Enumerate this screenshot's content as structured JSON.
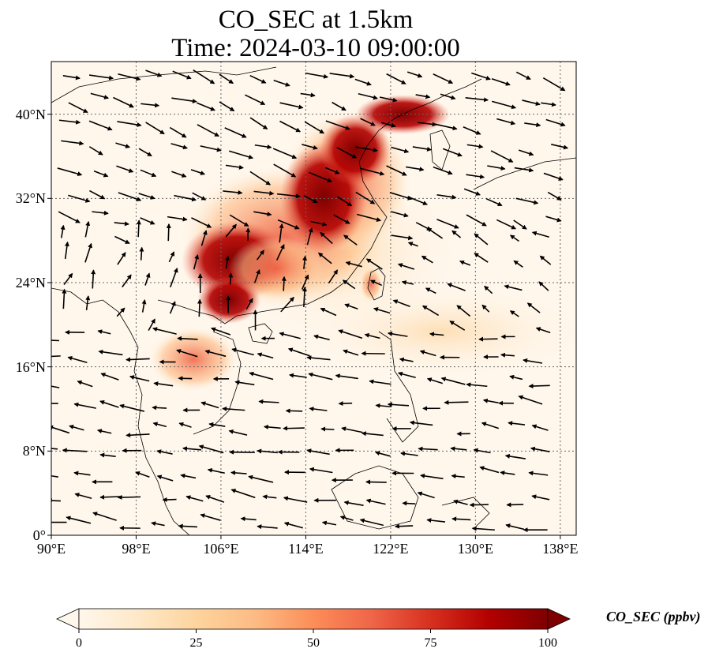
{
  "title": {
    "line1": "CO_SEC at 1.5km",
    "line2": "Time: 2024-03-10 09:00:00"
  },
  "map": {
    "lon_range": [
      90,
      139.5
    ],
    "lat_range": [
      0,
      45
    ],
    "gridlines": "dotted",
    "coastlines": true,
    "wind_vectors": true,
    "x_ticks": [
      "90°E",
      "98°E",
      "106°E",
      "114°E",
      "122°E",
      "130°E",
      "138°E"
    ],
    "x_tick_values": [
      90,
      98,
      106,
      114,
      122,
      130,
      138
    ],
    "y_ticks": [
      "0°",
      "8°N",
      "16°N",
      "24°N",
      "32°N",
      "40°N"
    ],
    "y_tick_values": [
      0,
      8,
      16,
      24,
      32,
      40
    ]
  },
  "colorbar": {
    "label": "CO_SEC (ppbv)",
    "min": 0,
    "max": 100,
    "extend": "both",
    "colormap": "OrRd",
    "ticks": [
      "0",
      "25",
      "50",
      "75",
      "100"
    ],
    "colors": [
      "#fff7ec",
      "#fee8c8",
      "#fdd49e",
      "#fdbb84",
      "#fc8d59",
      "#ef6548",
      "#d7301f",
      "#b30000",
      "#7f0000"
    ]
  }
}
